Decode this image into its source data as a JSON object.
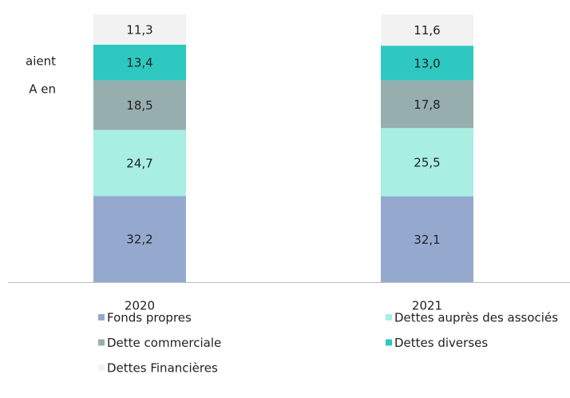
{
  "chart_data": {
    "type": "stacked_bar",
    "annotations": [
      "aient",
      "A en"
    ],
    "categories": [
      "2020",
      "2021"
    ],
    "series": [
      {
        "name": "Fonds propres",
        "color": "#95a9cf",
        "values": [
          32.2,
          32.1
        ],
        "value_labels": [
          "32,2",
          "32,1"
        ]
      },
      {
        "name": "Dettes auprès des associés",
        "color": "#a8eee3",
        "values": [
          24.7,
          25.5
        ],
        "value_labels": [
          "24,7",
          "25,5"
        ]
      },
      {
        "name": "Dette commerciale",
        "color": "#97aeae",
        "values": [
          18.5,
          17.8
        ],
        "value_labels": [
          "18,5",
          "17,8"
        ]
      },
      {
        "name": "Dettes diverses",
        "color": "#2ec8c0",
        "values": [
          13.4,
          13.0
        ],
        "value_labels": [
          "13,4",
          "13,0"
        ]
      },
      {
        "name": "Dettes Financières",
        "color": "#f2f2f2",
        "values": [
          11.3,
          11.6
        ],
        "value_labels": [
          "11,3",
          "11,6"
        ]
      }
    ]
  }
}
